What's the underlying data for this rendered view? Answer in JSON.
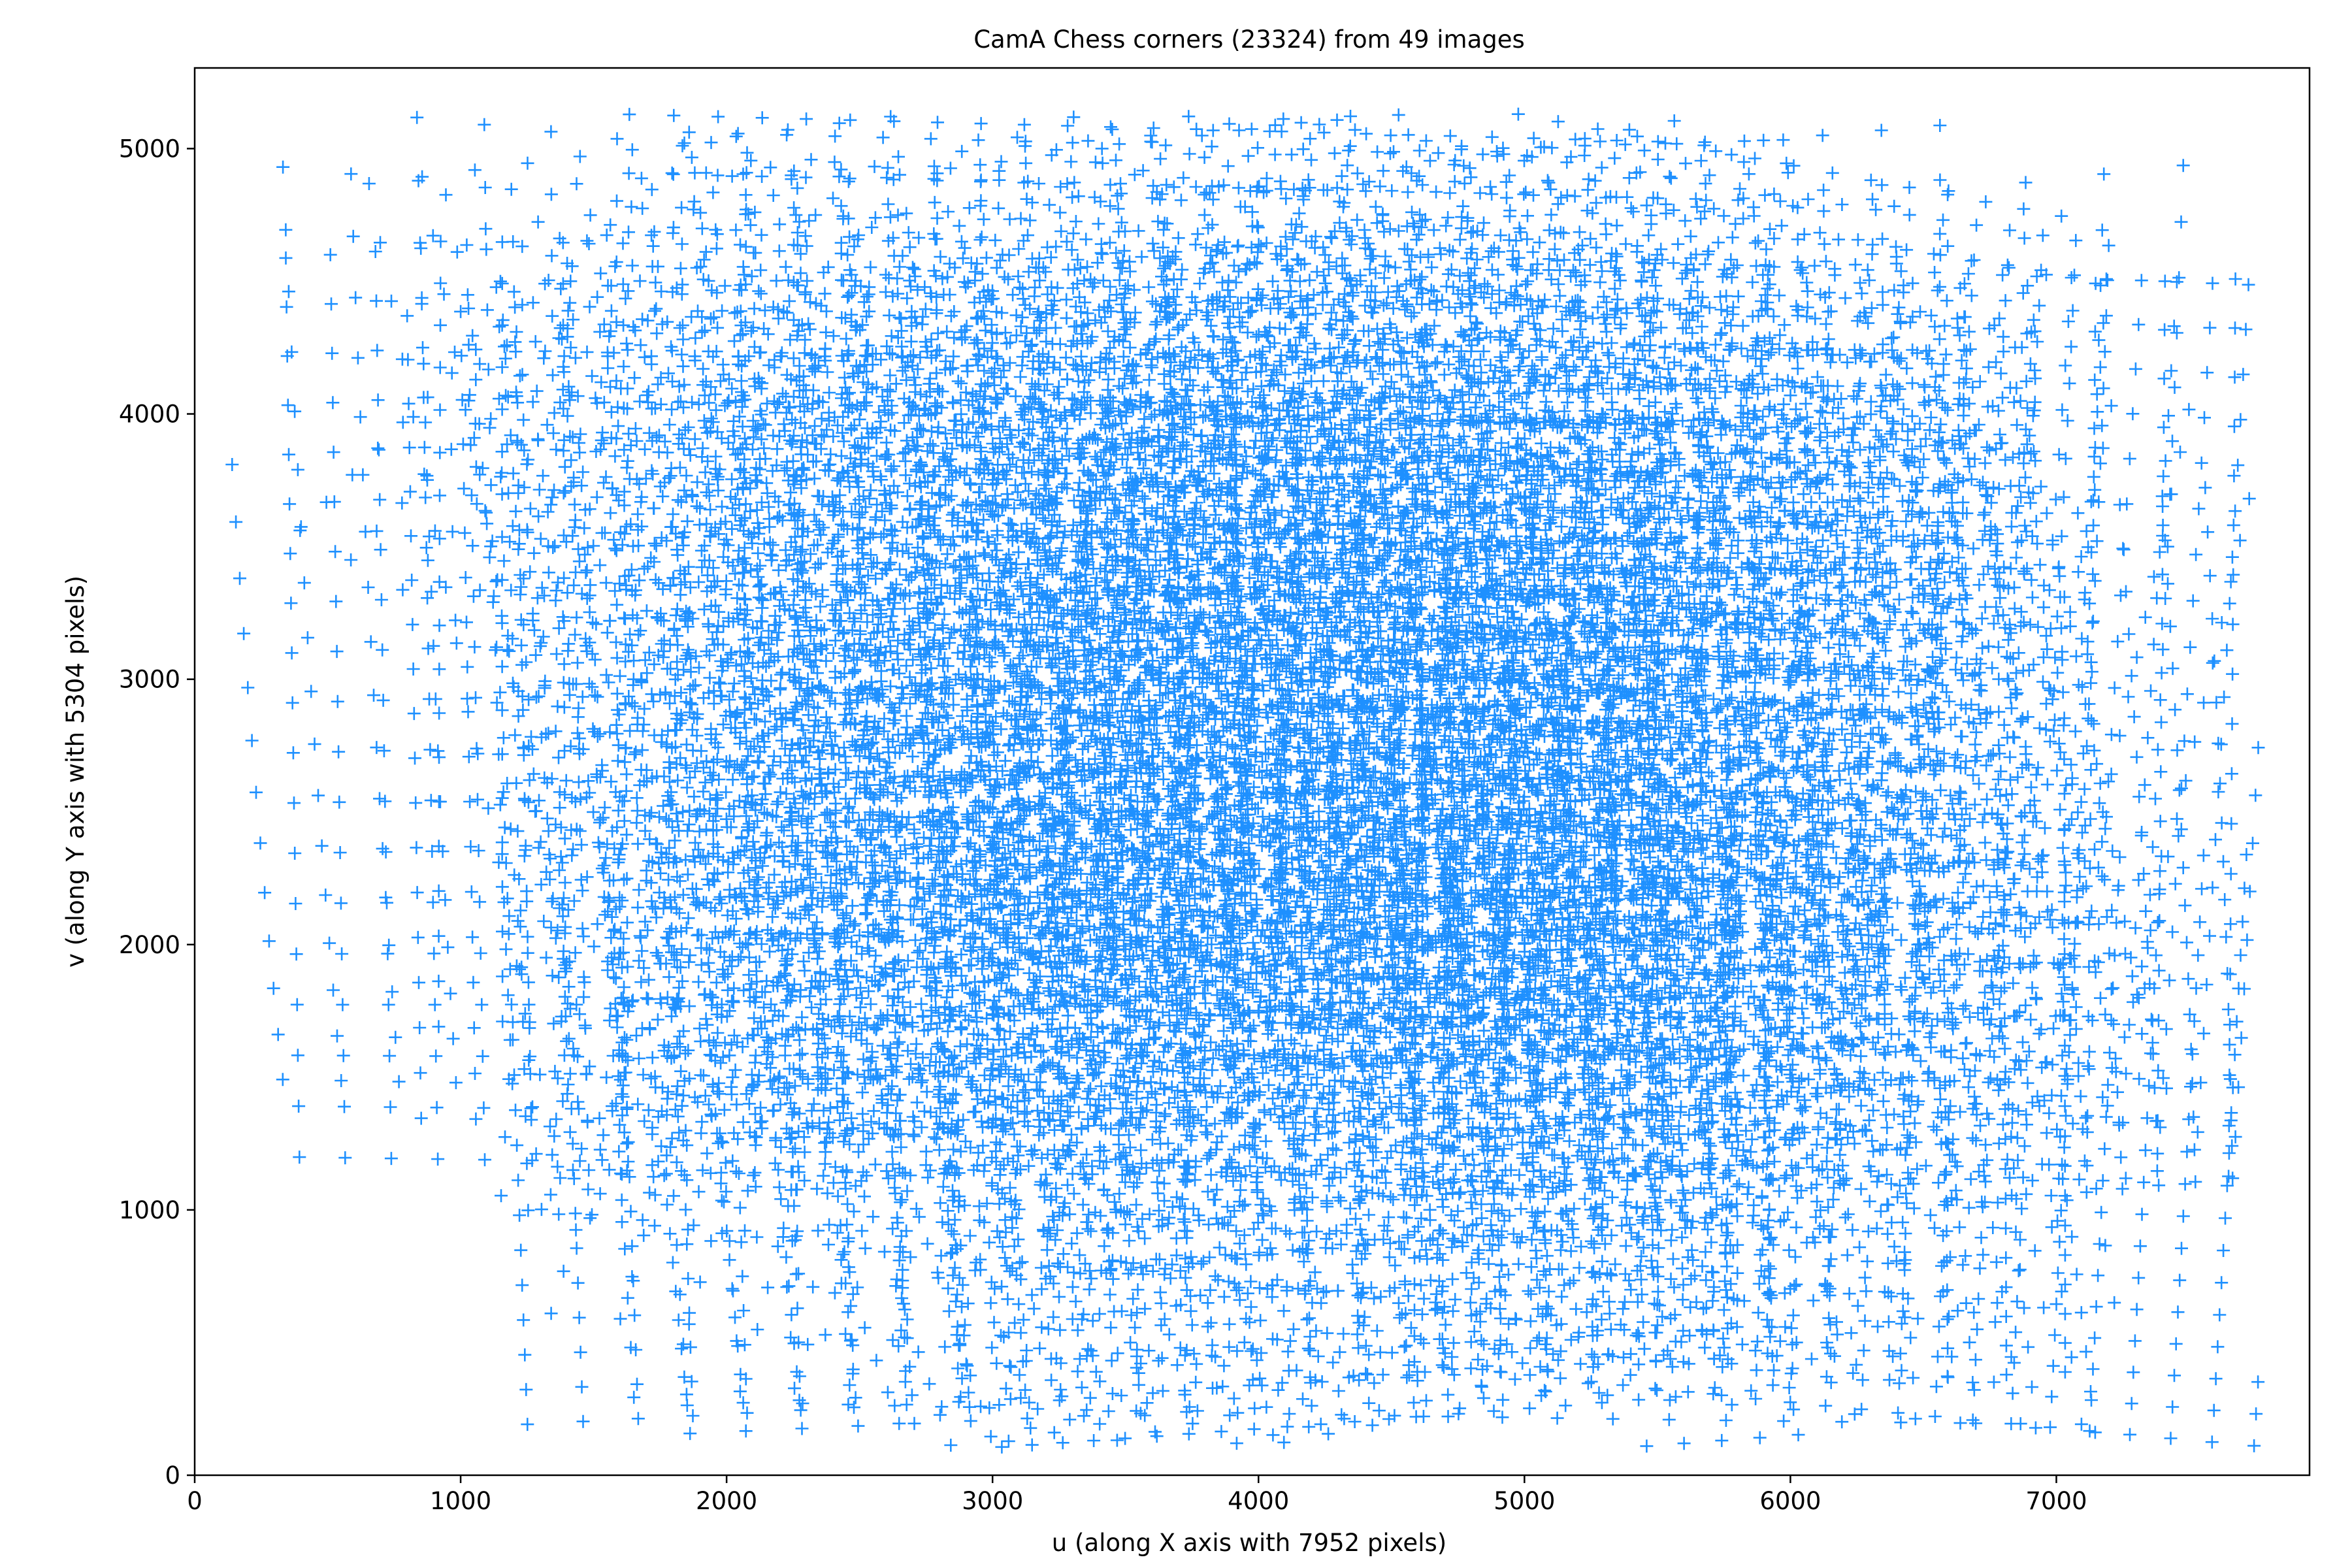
{
  "chart_data": {
    "type": "scatter",
    "title": "CamA Chess corners (23324) from 49 images",
    "xlabel": "u (along X axis with 7952 pixels)",
    "ylabel": "v (along Y axis with 5304 pixels)",
    "xlim": [
      0,
      7952
    ],
    "ylim": [
      0,
      5304
    ],
    "x_ticks": [
      0,
      1000,
      2000,
      3000,
      4000,
      5000,
      6000,
      7000
    ],
    "y_ticks": [
      0,
      1000,
      2000,
      3000,
      4000,
      5000
    ],
    "x_tick_labels": [
      "0",
      "1000",
      "2000",
      "3000",
      "4000",
      "5000",
      "6000",
      "7000"
    ],
    "y_tick_labels": [
      "0",
      "1000",
      "2000",
      "3000",
      "4000",
      "5000"
    ],
    "grid": false,
    "legend": "none",
    "marker": "plus",
    "marker_color": "#1e90ff",
    "point_count": 23324,
    "image_count": 49,
    "data_extent": {
      "x_min": 130,
      "x_max": 7760,
      "y_min": 100,
      "y_max": 5130
    }
  }
}
